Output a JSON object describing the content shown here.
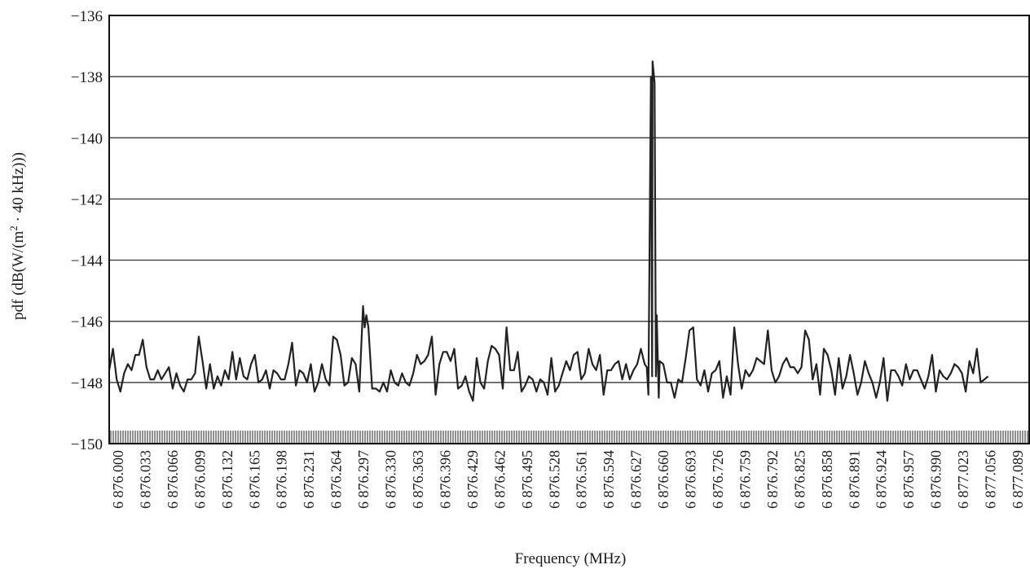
{
  "chart_data": {
    "type": "line",
    "title": "",
    "xlabel": "Frequency (MHz)",
    "ylabel_parts": {
      "prefix": "pdf (dB(W/(m",
      "sup": "2",
      "suffix": " · 40 kHz)))"
    },
    "ylim": [
      -150,
      -136
    ],
    "yticks": [
      -136,
      -138,
      -140,
      -142,
      -144,
      -146,
      -148,
      -150
    ],
    "ytick_labels": [
      "−136",
      "−138",
      "−140",
      "−142",
      "−144",
      "−146",
      "−148",
      "−150"
    ],
    "xlim": [
      6876.0,
      6877.11
    ],
    "xtick_labels": [
      "6 876.000",
      "6 876.033",
      "6 876.066",
      "6 876.099",
      "6 876.132",
      "6 876.165",
      "6 876.198",
      "6 876.231",
      "6 876.264",
      "6 876.297",
      "6 876.330",
      "6 876.363",
      "6 876.396",
      "6 876.429",
      "6 876.462",
      "6 876.495",
      "6 876.528",
      "6 876.561",
      "6 876.594",
      "6 876.627",
      "6 876.660",
      "6 876.693",
      "6 876.726",
      "6 876.759",
      "6 876.792",
      "6 876.825",
      "6 876.858",
      "6 876.891",
      "6 876.924",
      "6 876.957",
      "6 876.990",
      "6 877.023",
      "6 877.056",
      "6 877.089"
    ],
    "grid": "horizontal",
    "series": [
      {
        "color": "#222222",
        "points": [
          [
            6876.0,
            -147.6
          ],
          [
            6876.0045,
            -146.9
          ],
          [
            6876.009,
            -147.9
          ],
          [
            6876.0135,
            -148.3
          ],
          [
            6876.018,
            -147.7
          ],
          [
            6876.0225,
            -147.4
          ],
          [
            6876.027,
            -147.6
          ],
          [
            6876.0315,
            -147.1
          ],
          [
            6876.036,
            -147.1
          ],
          [
            6876.0405,
            -146.6
          ],
          [
            6876.045,
            -147.5
          ],
          [
            6876.0495,
            -147.9
          ],
          [
            6876.054,
            -147.9
          ],
          [
            6876.0585,
            -147.6
          ],
          [
            6876.063,
            -147.9
          ],
          [
            6876.0675,
            -147.7
          ],
          [
            6876.072,
            -147.5
          ],
          [
            6876.0765,
            -148.2
          ],
          [
            6876.081,
            -147.7
          ],
          [
            6876.0855,
            -148.1
          ],
          [
            6876.09,
            -148.3
          ],
          [
            6876.0945,
            -147.9
          ],
          [
            6876.099,
            -147.9
          ],
          [
            6876.1035,
            -147.7
          ],
          [
            6876.108,
            -146.5
          ],
          [
            6876.1125,
            -147.3
          ],
          [
            6876.117,
            -148.2
          ],
          [
            6876.1215,
            -147.4
          ],
          [
            6876.126,
            -148.2
          ],
          [
            6876.1305,
            -147.8
          ],
          [
            6876.135,
            -148.1
          ],
          [
            6876.1395,
            -147.6
          ],
          [
            6876.144,
            -147.9
          ],
          [
            6876.1485,
            -147.0
          ],
          [
            6876.153,
            -147.9
          ],
          [
            6876.1575,
            -147.2
          ],
          [
            6876.162,
            -147.8
          ],
          [
            6876.1665,
            -147.9
          ],
          [
            6876.171,
            -147.4
          ],
          [
            6876.1755,
            -147.1
          ],
          [
            6876.18,
            -148.0
          ],
          [
            6876.1845,
            -147.9
          ],
          [
            6876.189,
            -147.6
          ],
          [
            6876.1935,
            -148.2
          ],
          [
            6876.198,
            -147.6
          ],
          [
            6876.2025,
            -147.7
          ],
          [
            6876.207,
            -147.9
          ],
          [
            6876.2115,
            -147.9
          ],
          [
            6876.216,
            -147.4
          ],
          [
            6876.2205,
            -146.7
          ],
          [
            6876.225,
            -148.1
          ],
          [
            6876.2295,
            -147.6
          ],
          [
            6876.234,
            -147.7
          ],
          [
            6876.2385,
            -148.0
          ],
          [
            6876.243,
            -147.4
          ],
          [
            6876.2475,
            -148.3
          ],
          [
            6876.252,
            -148.0
          ],
          [
            6876.2565,
            -147.4
          ],
          [
            6876.261,
            -147.9
          ],
          [
            6876.2655,
            -148.1
          ],
          [
            6876.27,
            -146.5
          ],
          [
            6876.2745,
            -146.6
          ],
          [
            6876.279,
            -147.1
          ],
          [
            6876.2835,
            -148.1
          ],
          [
            6876.288,
            -148.0
          ],
          [
            6876.2925,
            -147.2
          ],
          [
            6876.297,
            -147.4
          ],
          [
            6876.3015,
            -148.3
          ],
          [
            6876.306,
            -145.5
          ],
          [
            6876.308,
            -146.2
          ],
          [
            6876.31,
            -145.8
          ],
          [
            6876.3125,
            -146.2
          ],
          [
            6876.317,
            -148.2
          ],
          [
            6876.3215,
            -148.2
          ],
          [
            6876.326,
            -148.3
          ],
          [
            6876.3305,
            -148.0
          ],
          [
            6876.335,
            -148.3
          ],
          [
            6876.3395,
            -147.6
          ],
          [
            6876.344,
            -148.0
          ],
          [
            6876.3485,
            -148.1
          ],
          [
            6876.353,
            -147.7
          ],
          [
            6876.3575,
            -148.0
          ],
          [
            6876.362,
            -148.1
          ],
          [
            6876.3665,
            -147.7
          ],
          [
            6876.371,
            -147.1
          ],
          [
            6876.3755,
            -147.4
          ],
          [
            6876.38,
            -147.3
          ],
          [
            6876.3845,
            -147.1
          ],
          [
            6876.389,
            -146.5
          ],
          [
            6876.3935,
            -148.4
          ],
          [
            6876.398,
            -147.4
          ],
          [
            6876.4025,
            -147.0
          ],
          [
            6876.407,
            -147.0
          ],
          [
            6876.4115,
            -147.3
          ],
          [
            6876.416,
            -146.9
          ],
          [
            6876.4205,
            -148.2
          ],
          [
            6876.425,
            -148.1
          ],
          [
            6876.4295,
            -147.8
          ],
          [
            6876.434,
            -148.3
          ],
          [
            6876.4385,
            -148.6
          ],
          [
            6876.443,
            -147.2
          ],
          [
            6876.4475,
            -148.0
          ],
          [
            6876.452,
            -148.2
          ],
          [
            6876.4565,
            -147.3
          ],
          [
            6876.461,
            -146.8
          ],
          [
            6876.4655,
            -146.9
          ],
          [
            6876.47,
            -147.1
          ],
          [
            6876.4745,
            -148.2
          ],
          [
            6876.479,
            -146.2
          ],
          [
            6876.4835,
            -147.6
          ],
          [
            6876.488,
            -147.6
          ],
          [
            6876.4925,
            -147.0
          ],
          [
            6876.497,
            -148.3
          ],
          [
            6876.5015,
            -148.1
          ],
          [
            6876.506,
            -147.8
          ],
          [
            6876.5105,
            -147.9
          ],
          [
            6876.515,
            -148.3
          ],
          [
            6876.5195,
            -147.9
          ],
          [
            6876.524,
            -148.0
          ],
          [
            6876.5285,
            -148.4
          ],
          [
            6876.533,
            -147.2
          ],
          [
            6876.5375,
            -148.3
          ],
          [
            6876.542,
            -148.1
          ],
          [
            6876.5465,
            -147.7
          ],
          [
            6876.551,
            -147.3
          ],
          [
            6876.5555,
            -147.6
          ],
          [
            6876.56,
            -147.1
          ],
          [
            6876.5645,
            -147.0
          ],
          [
            6876.569,
            -147.9
          ],
          [
            6876.5735,
            -147.7
          ],
          [
            6876.578,
            -146.9
          ],
          [
            6876.5825,
            -147.4
          ],
          [
            6876.587,
            -147.6
          ],
          [
            6876.5915,
            -147.1
          ],
          [
            6876.596,
            -148.4
          ],
          [
            6876.6005,
            -147.6
          ],
          [
            6876.605,
            -147.6
          ],
          [
            6876.6095,
            -147.4
          ],
          [
            6876.614,
            -147.3
          ],
          [
            6876.6185,
            -147.9
          ],
          [
            6876.623,
            -147.4
          ],
          [
            6876.6275,
            -147.9
          ],
          [
            6876.632,
            -147.6
          ],
          [
            6876.6365,
            -147.4
          ],
          [
            6876.641,
            -146.9
          ],
          [
            6876.6455,
            -147.4
          ],
          [
            6876.65,
            -148.4
          ],
          [
            6876.6545,
            -147.8
          ],
          [
            6876.659,
            -147.8
          ],
          [
            6876.6635,
            -147.3
          ],
          [
            6876.668,
            -147.4
          ],
          [
            6876.6725,
            -148.0
          ],
          [
            6876.677,
            -148.0
          ],
          [
            6876.6815,
            -148.5
          ],
          [
            6876.686,
            -147.9
          ],
          [
            6876.6905,
            -148.0
          ],
          [
            6876.695,
            -147.2
          ],
          [
            6876.6995,
            -146.3
          ],
          [
            6876.704,
            -146.2
          ],
          [
            6876.7085,
            -147.9
          ],
          [
            6876.713,
            -148.1
          ],
          [
            6876.7175,
            -147.6
          ],
          [
            6876.722,
            -148.3
          ],
          [
            6876.7265,
            -147.7
          ],
          [
            6876.731,
            -147.6
          ],
          [
            6876.7355,
            -147.3
          ],
          [
            6876.74,
            -148.5
          ],
          [
            6876.7445,
            -147.8
          ],
          [
            6876.749,
            -148.4
          ],
          [
            6876.7535,
            -146.2
          ],
          [
            6876.758,
            -147.4
          ],
          [
            6876.7625,
            -148.2
          ],
          [
            6876.767,
            -147.6
          ],
          [
            6876.7715,
            -147.8
          ],
          [
            6876.776,
            -147.6
          ],
          [
            6876.7805,
            -147.2
          ],
          [
            6876.785,
            -147.3
          ],
          [
            6876.7895,
            -147.4
          ],
          [
            6876.794,
            -146.3
          ],
          [
            6876.7985,
            -147.6
          ],
          [
            6876.803,
            -148.0
          ],
          [
            6876.8075,
            -147.8
          ],
          [
            6876.812,
            -147.4
          ],
          [
            6876.8165,
            -147.2
          ],
          [
            6876.821,
            -147.5
          ],
          [
            6876.8255,
            -147.5
          ],
          [
            6876.83,
            -147.7
          ],
          [
            6876.8345,
            -147.5
          ],
          [
            6876.839,
            -146.3
          ],
          [
            6876.8435,
            -146.6
          ],
          [
            6876.848,
            -147.9
          ],
          [
            6876.8525,
            -147.4
          ],
          [
            6876.857,
            -148.4
          ],
          [
            6876.8615,
            -146.9
          ],
          [
            6876.866,
            -147.1
          ],
          [
            6876.8705,
            -147.6
          ],
          [
            6876.875,
            -148.4
          ],
          [
            6876.8795,
            -147.2
          ],
          [
            6876.884,
            -148.2
          ],
          [
            6876.8885,
            -147.8
          ],
          [
            6876.893,
            -147.1
          ],
          [
            6876.8975,
            -147.7
          ],
          [
            6876.902,
            -148.4
          ],
          [
            6876.9065,
            -148.0
          ],
          [
            6876.911,
            -147.3
          ],
          [
            6876.9155,
            -147.7
          ],
          [
            6876.92,
            -148.0
          ],
          [
            6876.9245,
            -148.5
          ],
          [
            6876.929,
            -148.0
          ],
          [
            6876.9335,
            -147.2
          ],
          [
            6876.938,
            -148.6
          ],
          [
            6876.9425,
            -147.6
          ],
          [
            6876.947,
            -147.6
          ],
          [
            6876.9515,
            -147.8
          ],
          [
            6876.956,
            -148.1
          ],
          [
            6876.9605,
            -147.4
          ],
          [
            6876.965,
            -147.9
          ],
          [
            6876.9695,
            -147.6
          ],
          [
            6876.974,
            -147.6
          ],
          [
            6876.9785,
            -147.9
          ],
          [
            6876.983,
            -148.2
          ],
          [
            6876.9875,
            -147.8
          ],
          [
            6876.992,
            -147.1
          ],
          [
            6876.9965,
            -148.3
          ],
          [
            6877.001,
            -147.6
          ],
          [
            6877.0055,
            -147.8
          ],
          [
            6877.01,
            -147.9
          ],
          [
            6877.0145,
            -147.7
          ],
          [
            6877.019,
            -147.4
          ],
          [
            6877.0235,
            -147.5
          ],
          [
            6877.028,
            -147.7
          ],
          [
            6877.0325,
            -148.3
          ],
          [
            6877.037,
            -147.3
          ],
          [
            6877.0415,
            -147.7
          ],
          [
            6877.046,
            -146.9
          ],
          [
            6877.0505,
            -148.0
          ],
          [
            6877.055,
            -147.9
          ],
          [
            6877.0595,
            -147.8
          ]
        ]
      }
    ]
  }
}
